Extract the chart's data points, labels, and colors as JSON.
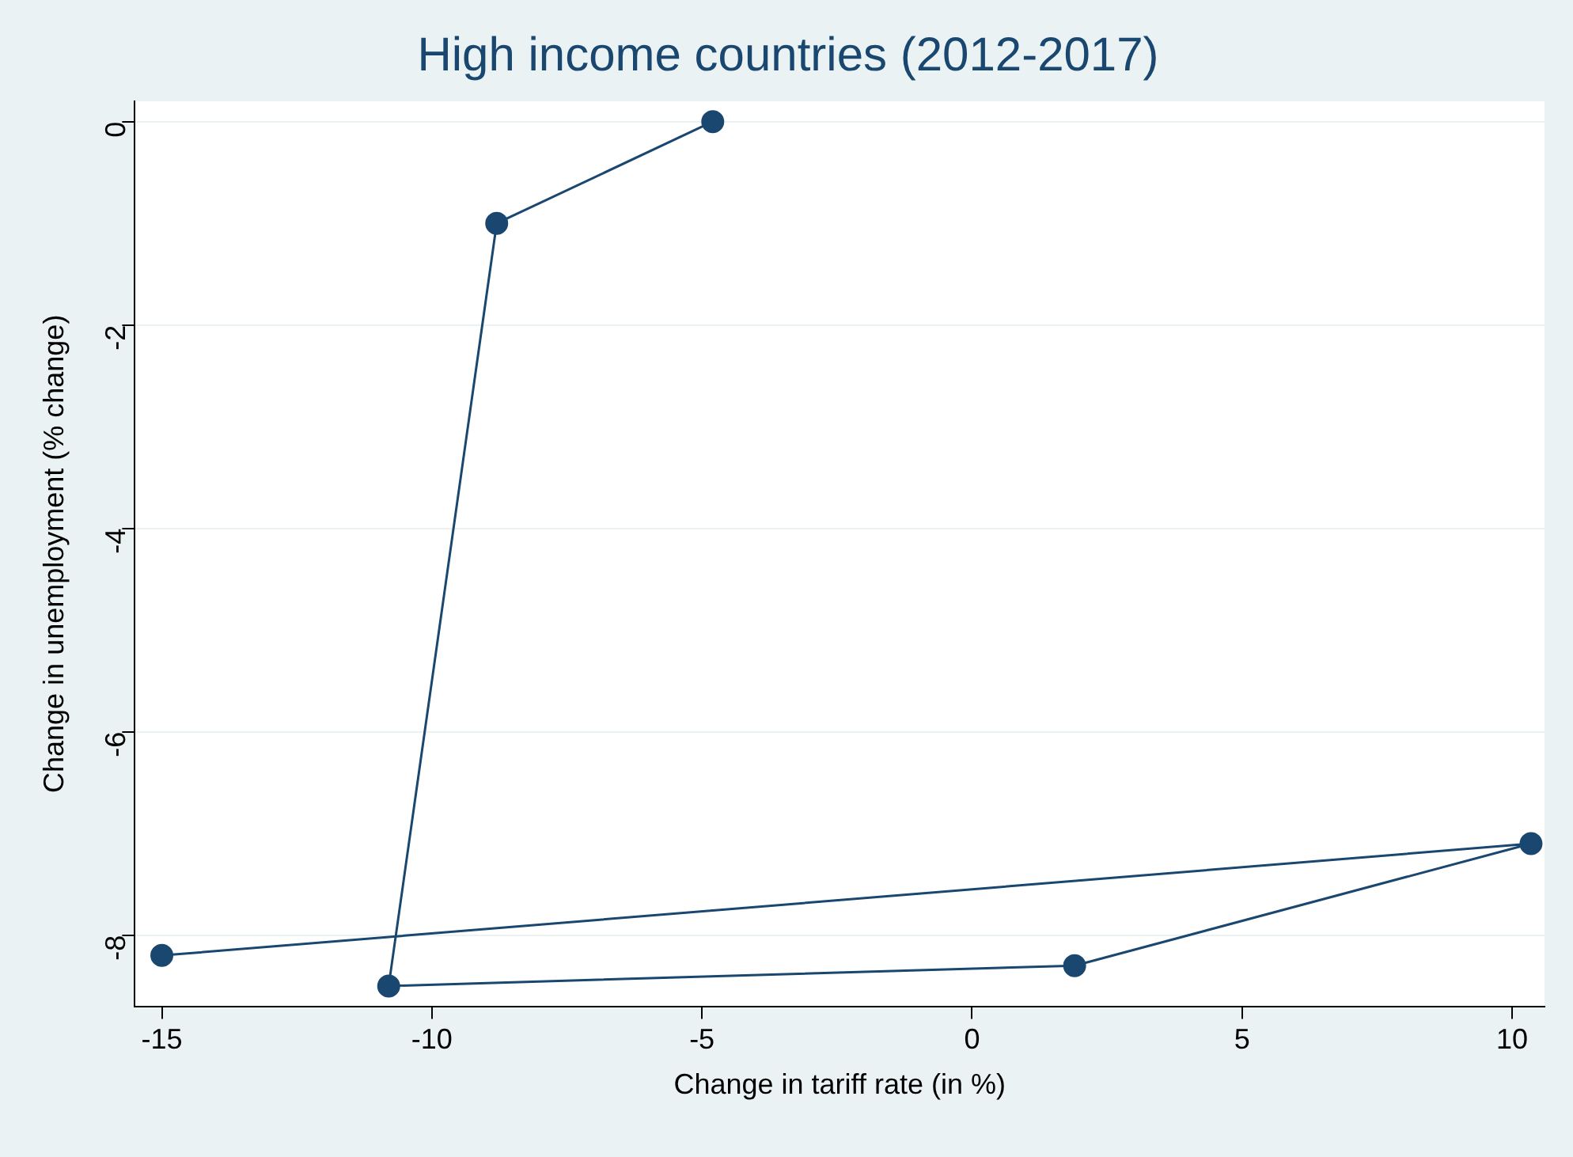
{
  "chart_data": {
    "type": "line",
    "title": "High income countries (2012-2017)",
    "xlabel": "Change in tariff rate (in %)",
    "ylabel": "Change in unemployment (% change)",
    "x": [
      -4.8,
      -8.8,
      -10.8,
      1.9,
      10.35,
      -15
    ],
    "series": [
      {
        "color": "#1a476f",
        "values": [
          0,
          -1,
          -8.5,
          -8.3,
          -7.1,
          -8.2
        ]
      }
    ],
    "xlim": [
      -15.5,
      10.6
    ],
    "ylim": [
      -8.7,
      0.2
    ],
    "xticks": [
      -15,
      -10,
      -5,
      0,
      5,
      10
    ],
    "yticks": [
      -8,
      -6,
      -4,
      -2,
      0
    ],
    "grid": "y",
    "marker": "circle",
    "line_style": "solid",
    "legend": false
  }
}
